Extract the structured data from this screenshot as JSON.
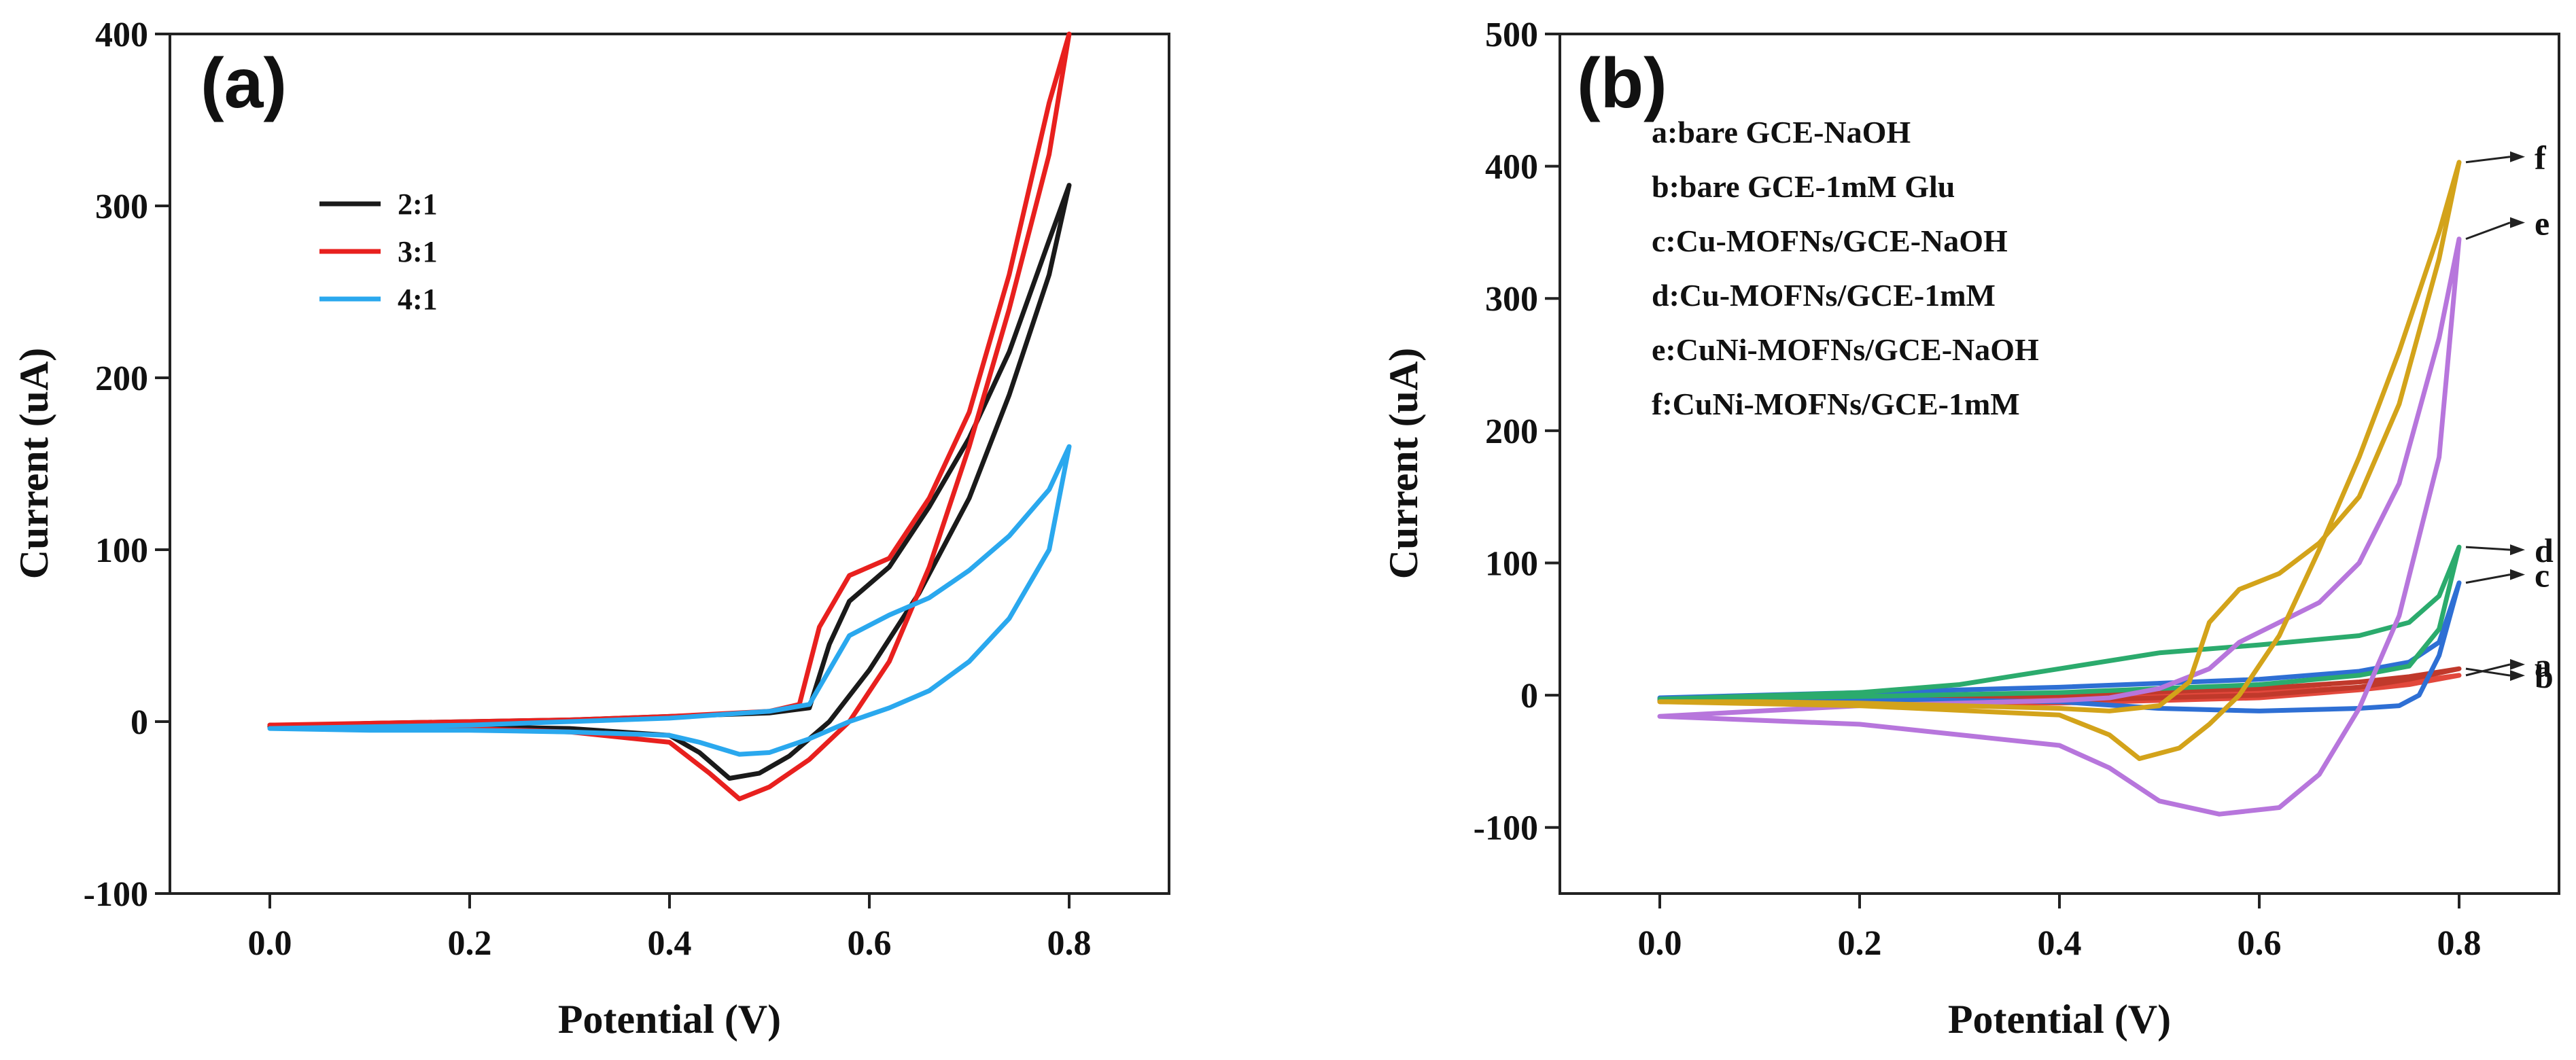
{
  "chart_data": [
    {
      "type": "line",
      "panel_label": "(a)",
      "title": "",
      "xlabel": "Potential (V)",
      "ylabel": "Current (uA)",
      "xlim": [
        -0.1,
        0.9
      ],
      "ylim": [
        -100,
        400
      ],
      "xticks": [
        0.0,
        0.2,
        0.4,
        0.6,
        0.8
      ],
      "xtick_labels": [
        "0.0",
        "0.2",
        "0.4",
        "0.6",
        "0.8"
      ],
      "yticks": [
        -100,
        0,
        100,
        200,
        300,
        400
      ],
      "ytick_labels": [
        "-100",
        "0",
        "100",
        "200",
        "300",
        "400"
      ],
      "legend_position": "upper-left",
      "series": [
        {
          "name": "2:1",
          "color": "#1a1a1a",
          "x": [
            0.0,
            0.1,
            0.2,
            0.3,
            0.4,
            0.5,
            0.54,
            0.56,
            0.58,
            0.62,
            0.66,
            0.7,
            0.74,
            0.78,
            0.8,
            0.78,
            0.74,
            0.7,
            0.65,
            0.6,
            0.56,
            0.52,
            0.49,
            0.46,
            0.43,
            0.4,
            0.3,
            0.2,
            0.1,
            0.0
          ],
          "y": [
            -3,
            -1,
            0,
            1,
            3,
            5,
            8,
            45,
            70,
            90,
            125,
            165,
            215,
            280,
            312,
            260,
            190,
            130,
            75,
            30,
            0,
            -20,
            -30,
            -33,
            -18,
            -8,
            -4,
            -3,
            -2,
            -2
          ]
        },
        {
          "name": "3:1",
          "color": "#e8201e",
          "x": [
            0.0,
            0.1,
            0.2,
            0.3,
            0.4,
            0.5,
            0.53,
            0.55,
            0.58,
            0.62,
            0.66,
            0.7,
            0.74,
            0.78,
            0.8,
            0.78,
            0.74,
            0.7,
            0.66,
            0.62,
            0.58,
            0.54,
            0.5,
            0.47,
            0.44,
            0.4,
            0.3,
            0.2,
            0.1,
            0.0
          ],
          "y": [
            -2,
            -1,
            0,
            1,
            3,
            6,
            10,
            55,
            85,
            95,
            130,
            180,
            260,
            360,
            400,
            330,
            240,
            160,
            90,
            35,
            0,
            -22,
            -38,
            -45,
            -30,
            -12,
            -6,
            -4,
            -3,
            -2
          ]
        },
        {
          "name": "4:1",
          "color": "#2aa8ee",
          "x": [
            0.0,
            0.1,
            0.2,
            0.3,
            0.4,
            0.5,
            0.54,
            0.56,
            0.58,
            0.62,
            0.66,
            0.7,
            0.74,
            0.78,
            0.8,
            0.78,
            0.74,
            0.7,
            0.66,
            0.62,
            0.58,
            0.54,
            0.5,
            0.47,
            0.43,
            0.4,
            0.3,
            0.2,
            0.1,
            0.0
          ],
          "y": [
            -4,
            -3,
            -2,
            0,
            2,
            6,
            10,
            30,
            50,
            62,
            72,
            88,
            108,
            135,
            160,
            100,
            60,
            35,
            18,
            8,
            0,
            -10,
            -18,
            -19,
            -12,
            -8,
            -6,
            -5,
            -5,
            -4
          ]
        }
      ]
    },
    {
      "type": "line",
      "panel_label": "(b)",
      "title": "",
      "xlabel": "Potential (V)",
      "ylabel": "Current (uA)",
      "xlim": [
        -0.1,
        0.9
      ],
      "ylim": [
        -150,
        500
      ],
      "xticks": [
        0.0,
        0.2,
        0.4,
        0.6,
        0.8
      ],
      "xtick_labels": [
        "0.0",
        "0.2",
        "0.4",
        "0.6",
        "0.8"
      ],
      "yticks": [
        -100,
        0,
        100,
        200,
        300,
        400,
        500
      ],
      "ytick_labels": [
        "-100",
        "0",
        "100",
        "200",
        "300",
        "400",
        "500"
      ],
      "legend_position": "top-left",
      "legend_entries": [
        "a:bare GCE-NaOH",
        "b:bare GCE-1mM Glu",
        "c:Cu-MOFNs/GCE-NaOH",
        "d:Cu-MOFNs/GCE-1mM",
        "e:CuNi-MOFNs/GCE-NaOH",
        "f:CuNi-MOFNs/GCE-1mM"
      ],
      "series": [
        {
          "name": "a",
          "color": "#e2483c",
          "x": [
            0.0,
            0.2,
            0.4,
            0.6,
            0.7,
            0.75,
            0.8,
            0.75,
            0.7,
            0.6,
            0.4,
            0.2,
            0.0
          ],
          "y": [
            -5,
            -3,
            -2,
            2,
            6,
            10,
            15,
            8,
            4,
            -2,
            -6,
            -6,
            -5
          ]
        },
        {
          "name": "b",
          "color": "#c0392b",
          "x": [
            0.0,
            0.2,
            0.4,
            0.6,
            0.7,
            0.75,
            0.8,
            0.75,
            0.7,
            0.6,
            0.4,
            0.2,
            0.0
          ],
          "y": [
            -4,
            -2,
            0,
            5,
            10,
            14,
            20,
            12,
            6,
            0,
            -4,
            -5,
            -4
          ]
        },
        {
          "name": "c",
          "color": "#2e6fd4",
          "x": [
            0.0,
            0.2,
            0.4,
            0.6,
            0.7,
            0.75,
            0.78,
            0.8,
            0.78,
            0.76,
            0.74,
            0.7,
            0.6,
            0.5,
            0.4,
            0.2,
            0.0
          ],
          "y": [
            -2,
            2,
            6,
            12,
            18,
            25,
            40,
            85,
            30,
            0,
            -8,
            -10,
            -12,
            -10,
            -5,
            -3,
            -2
          ]
        },
        {
          "name": "d",
          "color": "#2bab6d",
          "x": [
            0.0,
            0.2,
            0.3,
            0.4,
            0.5,
            0.6,
            0.7,
            0.75,
            0.78,
            0.8,
            0.78,
            0.75,
            0.7,
            0.6,
            0.4,
            0.2,
            0.0
          ],
          "y": [
            -3,
            2,
            8,
            20,
            32,
            38,
            45,
            55,
            75,
            112,
            50,
            22,
            15,
            8,
            2,
            -1,
            -3
          ]
        },
        {
          "name": "e",
          "color": "#b776dc",
          "x": [
            0.0,
            0.2,
            0.4,
            0.45,
            0.5,
            0.56,
            0.62,
            0.66,
            0.7,
            0.74,
            0.78,
            0.8,
            0.78,
            0.74,
            0.7,
            0.66,
            0.62,
            0.58,
            0.55,
            0.5,
            0.45,
            0.4,
            0.3,
            0.2,
            0.1,
            0.0
          ],
          "y": [
            -16,
            -22,
            -38,
            -55,
            -80,
            -90,
            -85,
            -60,
            -10,
            60,
            180,
            345,
            270,
            160,
            100,
            70,
            55,
            40,
            20,
            5,
            -2,
            -4,
            -6,
            -8,
            -12,
            -16
          ]
        },
        {
          "name": "f",
          "color": "#d3a31a",
          "x": [
            0.0,
            0.2,
            0.4,
            0.45,
            0.48,
            0.52,
            0.55,
            0.58,
            0.62,
            0.66,
            0.7,
            0.74,
            0.78,
            0.8,
            0.78,
            0.74,
            0.7,
            0.66,
            0.62,
            0.58,
            0.55,
            0.53,
            0.5,
            0.45,
            0.4,
            0.3,
            0.2,
            0.1,
            0.0
          ],
          "y": [
            -5,
            -8,
            -15,
            -30,
            -48,
            -40,
            -22,
            0,
            45,
            110,
            180,
            260,
            350,
            403,
            330,
            220,
            150,
            115,
            92,
            80,
            55,
            10,
            -8,
            -12,
            -10,
            -8,
            -6,
            -5,
            -5
          ]
        }
      ],
      "curve_tags": [
        {
          "text": "f",
          "x": 0.8,
          "y": 403
        },
        {
          "text": "e",
          "x": 0.8,
          "y": 345
        },
        {
          "text": "d",
          "x": 0.8,
          "y": 112
        },
        {
          "text": "c",
          "x": 0.8,
          "y": 85
        },
        {
          "text": "b",
          "x": 0.8,
          "y": 20
        },
        {
          "text": "a",
          "x": 0.8,
          "y": 15
        }
      ]
    }
  ]
}
